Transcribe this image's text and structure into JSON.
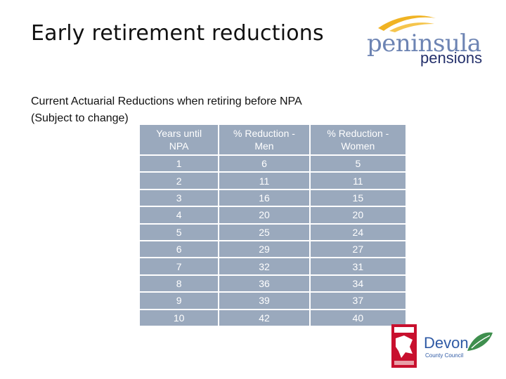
{
  "title": "Early retirement reductions",
  "logo": {
    "brand_top": "peninsula",
    "brand_bottom": "pensions"
  },
  "subtitle": {
    "line1": "Current Actuarial Reductions when retiring before NPA",
    "line2": "(Subject to change)"
  },
  "table": {
    "headers": [
      [
        "Years until",
        "NPA"
      ],
      [
        "% Reduction -",
        "Men"
      ],
      [
        "% Reduction -",
        "Women"
      ]
    ],
    "rows": [
      [
        "1",
        "6",
        "5"
      ],
      [
        "2",
        "11",
        "11"
      ],
      [
        "3",
        "16",
        "15"
      ],
      [
        "4",
        "20",
        "20"
      ],
      [
        "5",
        "25",
        "24"
      ],
      [
        "6",
        "29",
        "27"
      ],
      [
        "7",
        "32",
        "31"
      ],
      [
        "8",
        "36",
        "34"
      ],
      [
        "9",
        "39",
        "37"
      ],
      [
        "10",
        "42",
        "40"
      ]
    ]
  },
  "footer_logo": {
    "name": "Devon",
    "sub": "County Council"
  },
  "colors": {
    "table_fill": "#9aa9bd",
    "peninsula_blue": "#6d84b3",
    "pensions_navy": "#24306b",
    "swoosh": "#f0b323",
    "devon_blue": "#2f5aa5",
    "devon_red": "#c8102e",
    "devon_green": "#3f8f4e"
  }
}
